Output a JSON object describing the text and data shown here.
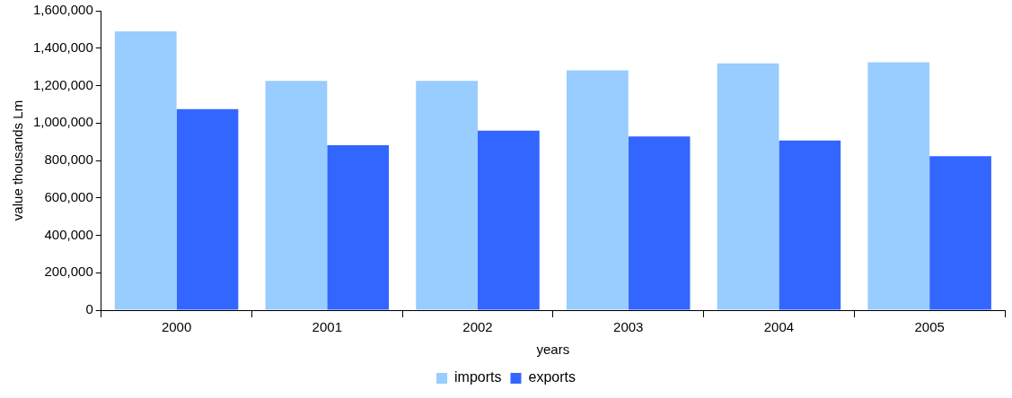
{
  "chart_data": {
    "type": "bar",
    "xlabel": "years",
    "ylabel": "value thousands Lm",
    "categories": [
      "2000",
      "2001",
      "2002",
      "2003",
      "2004",
      "2005"
    ],
    "series": [
      {
        "name": "imports",
        "color": "#99ccff",
        "values": [
          1490000,
          1225000,
          1225000,
          1282000,
          1318000,
          1324000
        ]
      },
      {
        "name": "exports",
        "color": "#3366ff",
        "values": [
          1074000,
          881000,
          959000,
          928000,
          907000,
          823000
        ]
      }
    ],
    "ylim": [
      0,
      1600000
    ],
    "yticks": [
      0,
      {
        "value": 200000,
        "label": "200,000"
      },
      {
        "value": 400000,
        "label": "400,000"
      },
      {
        "value": 600000,
        "label": "600,000"
      },
      {
        "value": 800000,
        "label": "800,000"
      },
      {
        "value": 1000000,
        "label": "1,000,000"
      },
      {
        "value": 1200000,
        "label": "1,200,000"
      },
      {
        "value": 1400000,
        "label": "1,400,000"
      },
      {
        "value": 1600000,
        "label": "1,600,000"
      }
    ],
    "grid": false,
    "legend": "bottom"
  }
}
